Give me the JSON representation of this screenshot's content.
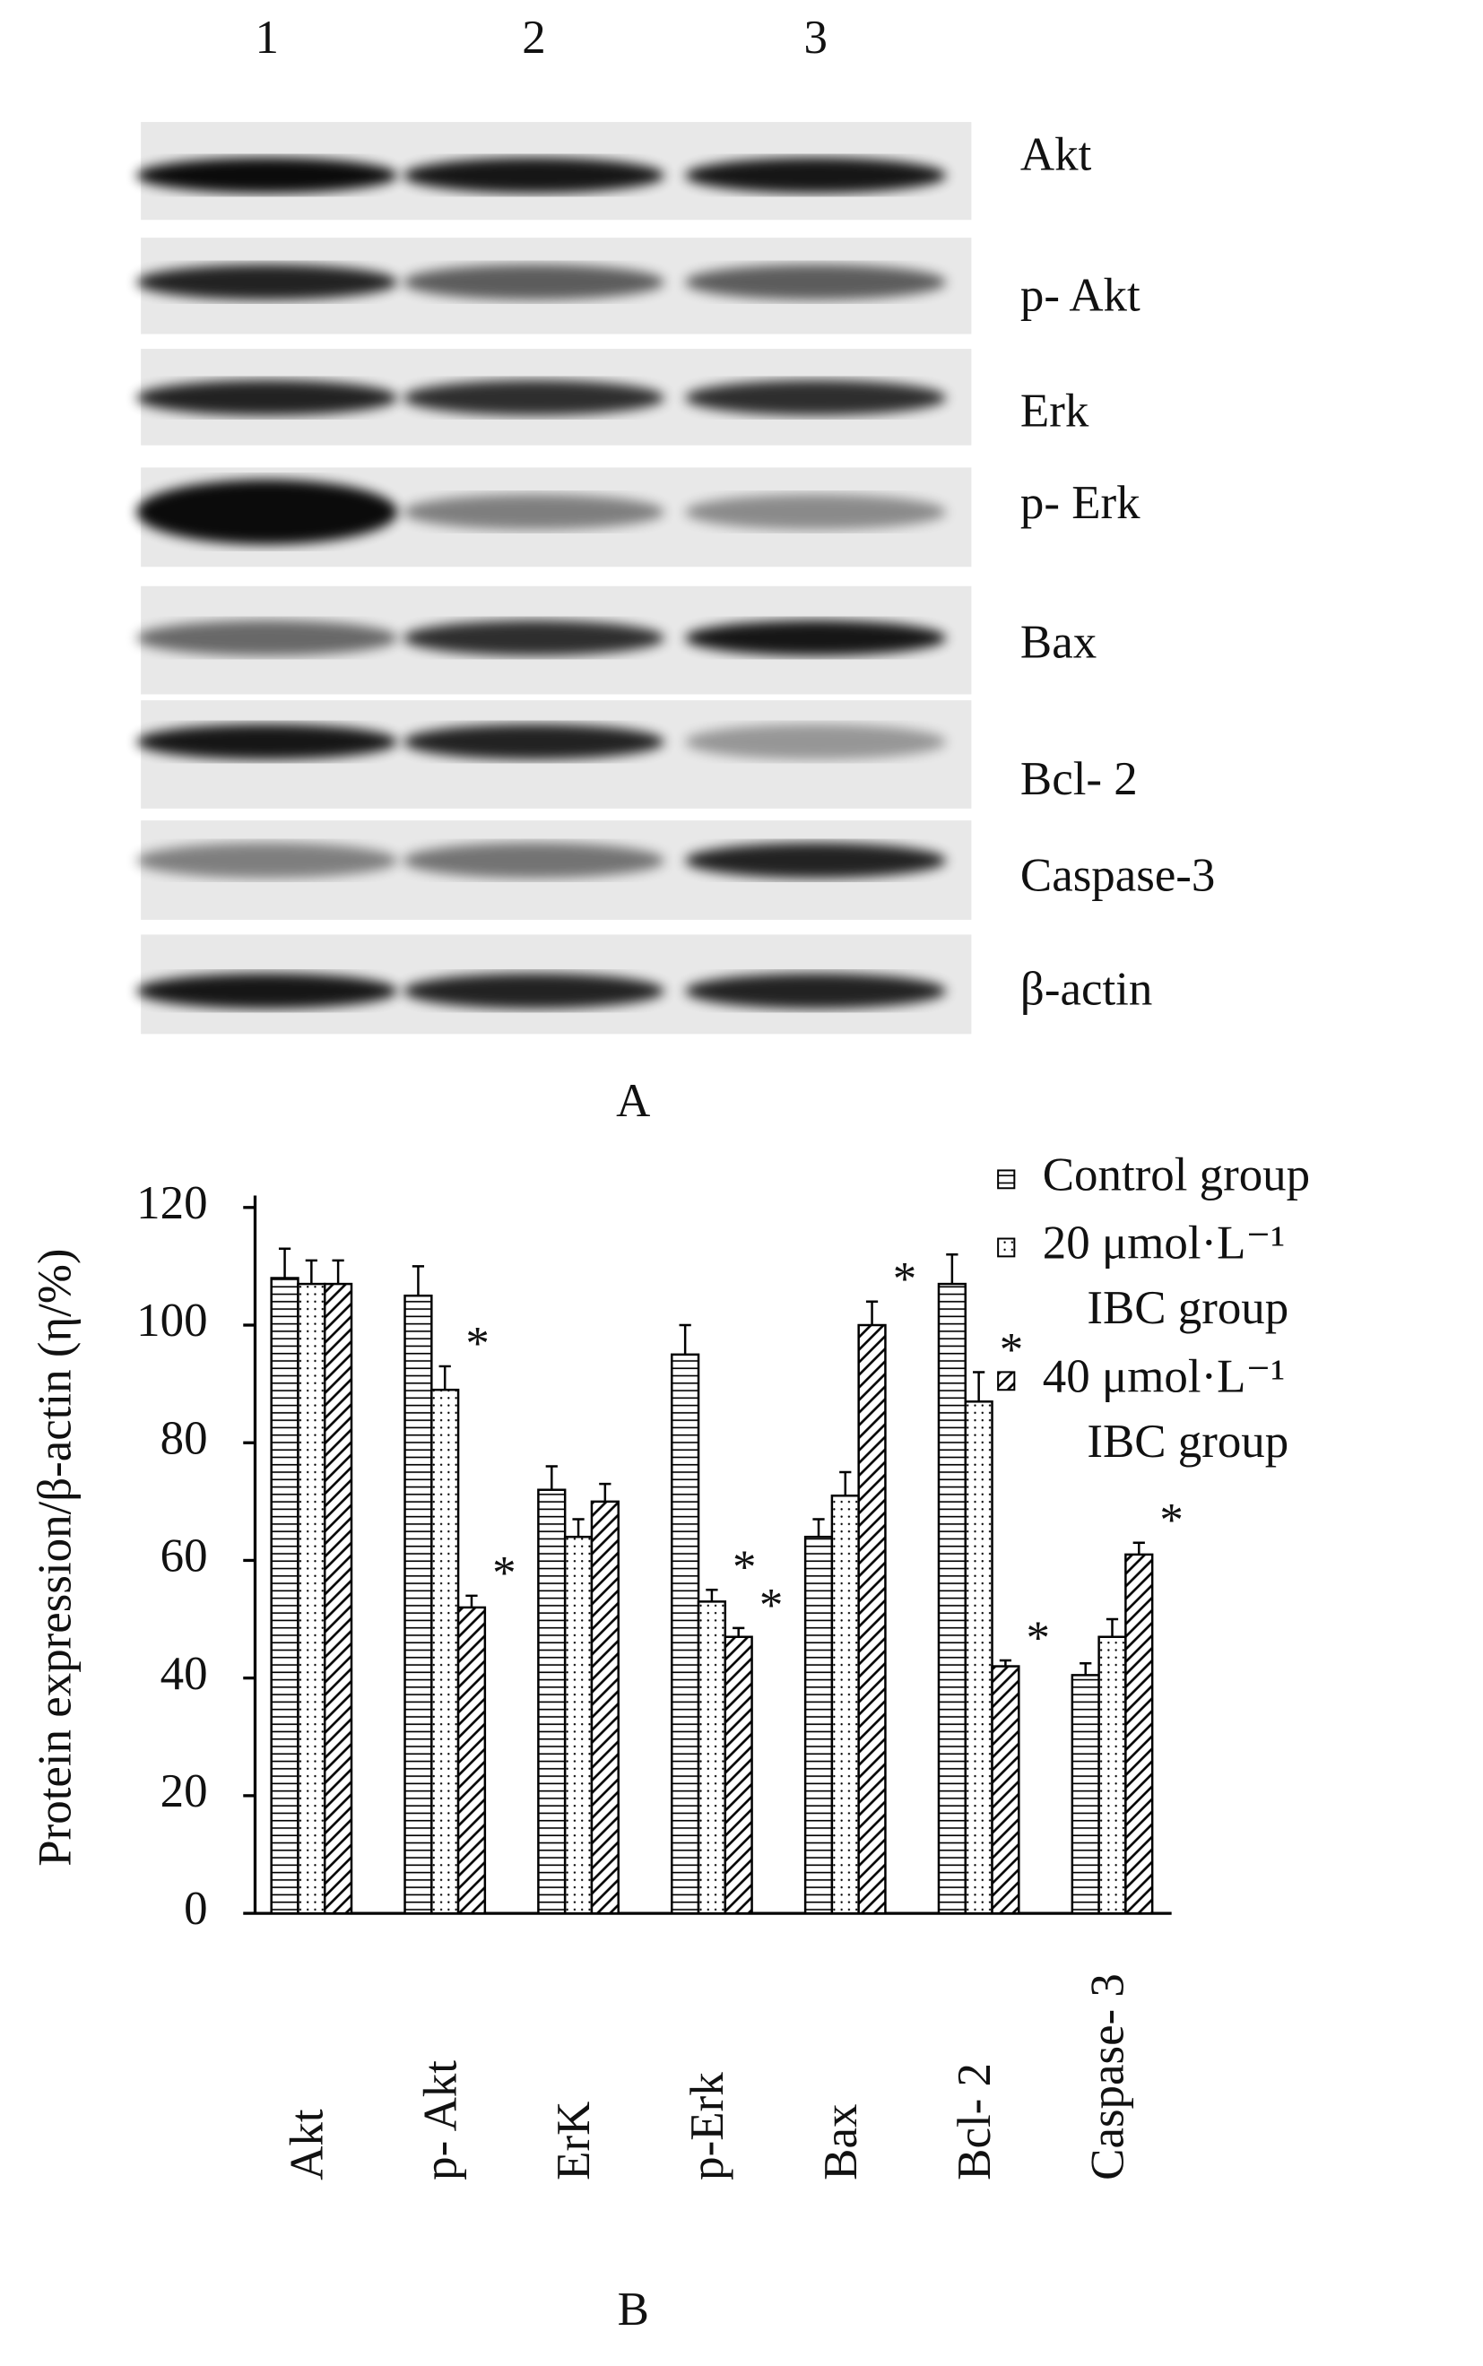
{
  "blot": {
    "lanes": [
      "1",
      "2",
      "3"
    ],
    "rows": [
      "Akt",
      "p- Akt",
      "Erk",
      "p- Erk",
      "Bax",
      "Bcl- 2",
      "Caspase-3",
      "β-actin"
    ],
    "label": "A"
  },
  "chart_data": {
    "type": "bar",
    "label": "B",
    "y_label": "Protein expression/β-actin (η/%)",
    "categories": [
      "Akt",
      "p- Akt",
      "ErK",
      "p-Erk",
      "Bax",
      "Bcl- 2",
      "Caspase- 3"
    ],
    "series": [
      {
        "name": "Control group",
        "color": "#000000",
        "hatch": "horizontal",
        "values": [
          108,
          105,
          72,
          95,
          64,
          107,
          40.5
        ],
        "errors": [
          5,
          5,
          4,
          5,
          3,
          5,
          2
        ],
        "marks": [
          null,
          null,
          null,
          null,
          null,
          null,
          null
        ]
      },
      {
        "name": "20 μmol·L⁻¹ IBC group",
        "color": "#000000",
        "hatch": "dots",
        "values": [
          107,
          89,
          64,
          53,
          71,
          87,
          47
        ],
        "errors": [
          4,
          4,
          3,
          2,
          4,
          5,
          3
        ],
        "marks": [
          null,
          "*",
          null,
          "*",
          null,
          "*",
          null
        ]
      },
      {
        "name": "40 μmol·L⁻¹ IBC group",
        "color": "#000000",
        "hatch": "diagonal",
        "values": [
          107,
          52,
          70,
          47,
          100,
          42,
          61
        ],
        "errors": [
          4,
          2,
          3,
          1.5,
          4,
          1,
          2
        ],
        "marks": [
          null,
          "*",
          null,
          "*",
          "*",
          "*",
          "*"
        ]
      }
    ],
    "ylim": [
      0,
      120
    ],
    "yticks": [
      0,
      20,
      40,
      60,
      80,
      100,
      120
    ],
    "grid": false,
    "legend": "top-right"
  }
}
